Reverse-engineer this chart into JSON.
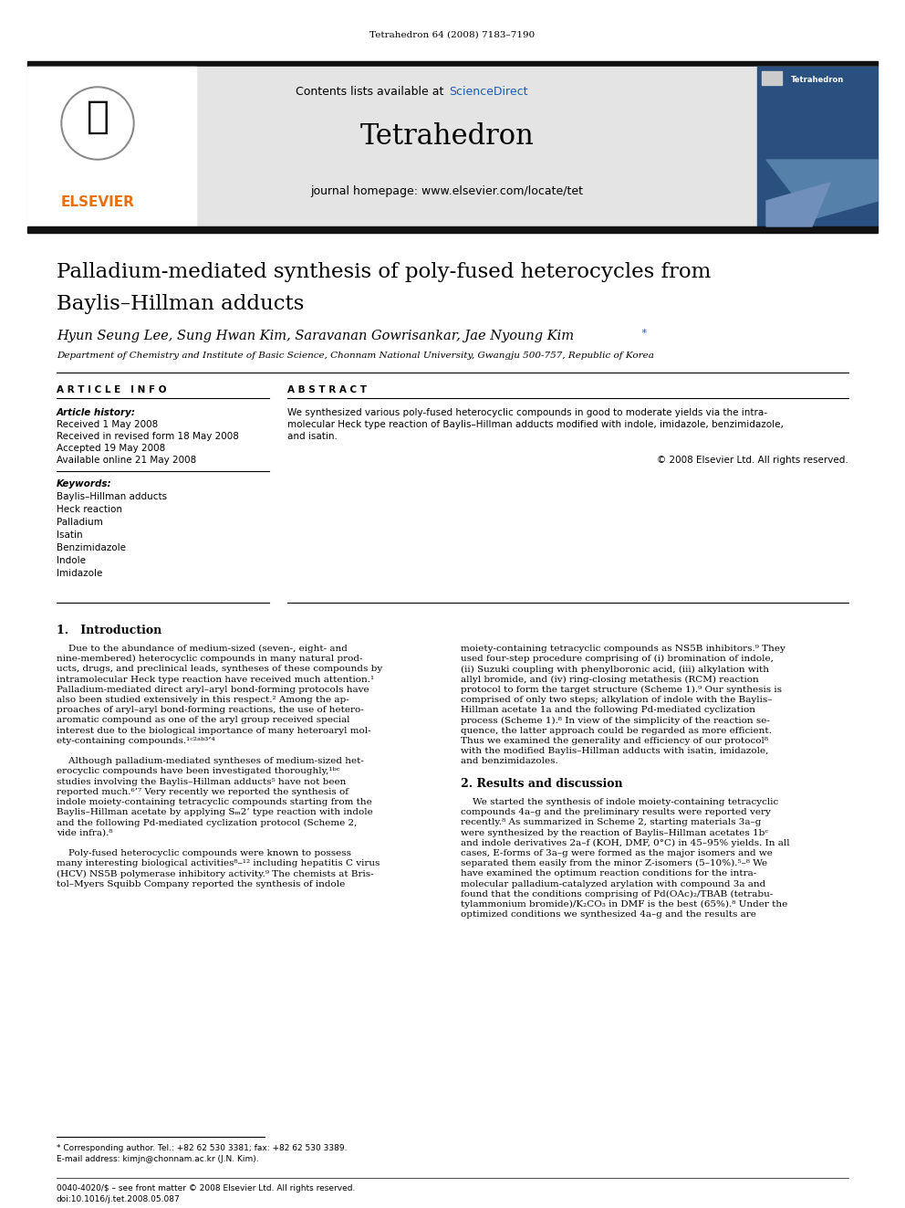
{
  "page_title": "Tetrahedron 64 (2008) 7183–7190",
  "journal_name": "Tetrahedron",
  "contents_line_pre": "Contents lists available at ",
  "contents_line_link": "ScienceDirect",
  "homepage_line": "journal homepage: www.elsevier.com/locate/tet",
  "article_title_line1": "Palladium-mediated synthesis of poly-fused heterocycles from",
  "article_title_line2": "Baylis–Hillman adducts",
  "authors_pre": "Hyun Seung Lee, Sung Hwan Kim, Saravanan Gowrisankar, Jae Nyoung Kim",
  "authors_star": " *",
  "affiliation": "Department of Chemistry and Institute of Basic Science, Chonnam National University, Gwangju 500-757, Republic of Korea",
  "article_info_header": "A R T I C L E   I N F O",
  "abstract_header": "A B S T R A C T",
  "article_history_label": "Article history:",
  "received": "Received 1 May 2008",
  "received_revised": "Received in revised form 18 May 2008",
  "accepted": "Accepted 19 May 2008",
  "available": "Available online 21 May 2008",
  "keywords_label": "Keywords:",
  "keywords": [
    "Baylis–Hillman adducts",
    "Heck reaction",
    "Palladium",
    "Isatin",
    "Benzimidazole",
    "Indole",
    "Imidazole"
  ],
  "abstract_lines": [
    "We synthesized various poly-fused heterocyclic compounds in good to moderate yields via the intra-",
    "molecular Heck type reaction of Baylis–Hillman adducts modified with indole, imidazole, benzimidazole,",
    "and isatin."
  ],
  "copyright": "© 2008 Elsevier Ltd. All rights reserved.",
  "section1_header": "1.   Introduction",
  "intro_col1_lines": [
    "    Due to the abundance of medium-sized (seven-, eight- and",
    "nine-membered) heterocyclic compounds in many natural prod-",
    "ucts, drugs, and preclinical leads, syntheses of these compounds by",
    "intramolecular Heck type reaction have received much attention.¹",
    "Palladium-mediated direct aryl–aryl bond-forming protocols have",
    "also been studied extensively in this respect.² Among the ap-",
    "proaches of aryl–aryl bond-forming reactions, the use of hetero-",
    "aromatic compound as one of the aryl group received special",
    "interest due to the biological importance of many heteroaryl mol-",
    "ety-containing compounds.¹ᶜ²ᵃᵇ³’⁴",
    "",
    "    Although palladium-mediated syntheses of medium-sized het-",
    "erocyclic compounds have been investigated thoroughly,¹ᵇᶜ",
    "studies involving the Baylis–Hillman adducts⁵ have not been",
    "reported much.⁶’⁷ Very recently we reported the synthesis of",
    "indole moiety-containing tetracyclic compounds starting from the",
    "Baylis–Hillman acetate by applying Sₘ2’ type reaction with indole",
    "and the following Pd-mediated cyclization protocol (Scheme 2,",
    "vide infra).⁸",
    "",
    "    Poly-fused heterocyclic compounds were known to possess",
    "many interesting biological activities⁸–¹² including hepatitis C virus",
    "(HCV) NS5B polymerase inhibitory activity.⁹ The chemists at Bris-",
    "tol–Myers Squibb Company reported the synthesis of indole"
  ],
  "intro_col2_lines": [
    "moiety-containing tetracyclic compounds as NS5B inhibitors.⁹ They",
    "used four-step procedure comprising of (i) bromination of indole,",
    "(ii) Suzuki coupling with phenylboronic acid, (iii) alkylation with",
    "allyl bromide, and (iv) ring-closing metathesis (RCM) reaction",
    "protocol to form the target structure (Scheme 1).⁹ Our synthesis is",
    "comprised of only two steps; alkylation of indole with the Baylis–",
    "Hillman acetate 1a and the following Pd-mediated cyclization",
    "process (Scheme 1).⁸ In view of the simplicity of the reaction se-",
    "quence, the latter approach could be regarded as more efficient.",
    "Thus we examined the generality and efficiency of our protocol⁸",
    "with the modified Baylis–Hillman adducts with isatin, imidazole,",
    "and benzimidazoles.",
    "",
    "2. Results and discussion",
    "",
    "    We started the synthesis of indole moiety-containing tetracyclic",
    "compounds 4a–g and the preliminary results were reported very",
    "recently.⁸ As summarized in Scheme 2, starting materials 3a–g",
    "were synthesized by the reaction of Baylis–Hillman acetates 1bᶜ",
    "and indole derivatives 2a–f (KOH, DMF, 0°C) in 45–95% yields. In all",
    "cases, E-forms of 3a–g were formed as the major isomers and we",
    "separated them easily from the minor Z-isomers (5–10%).⁵–⁸ We",
    "have examined the optimum reaction conditions for the intra-",
    "molecular palladium-catalyzed arylation with compound 3a and",
    "found that the conditions comprising of Pd(OAc)₂/TBAB (tetrabu-",
    "tylammonium bromide)/K₂CO₃ in DMF is the best (65%).⁸ Under the",
    "optimized conditions we synthesized 4a–g and the results are"
  ],
  "footnote_line1": "* Corresponding author. Tel.: +82 62 530 3381; fax: +82 62 530 3389.",
  "footnote_line2": "E-mail address: kimjn@chonnam.ac.kr (J.N. Kim).",
  "footer_line1": "0040-4020/$ – see front matter © 2008 Elsevier Ltd. All rights reserved.",
  "footer_line2": "doi:10.1016/j.tet.2008.05.087",
  "bg_color": "#ffffff",
  "header_bg": "#e4e4e4",
  "black_bar_color": "#111111",
  "orange_color": "#e87010",
  "blue_link_color": "#1a5aad",
  "text_color": "#000000",
  "cover_bg": "#2a5080",
  "cover_blue_light": "#5580aa"
}
